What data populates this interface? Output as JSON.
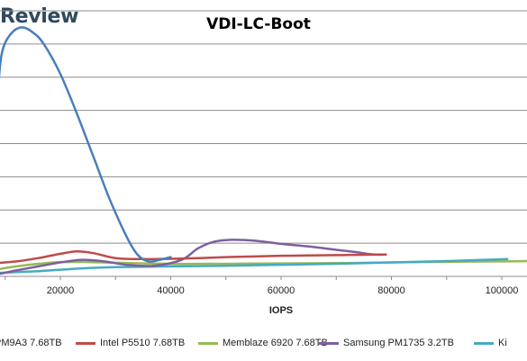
{
  "header": {
    "brand": "Review"
  },
  "colors": {
    "grid": "#8c8c8c",
    "axis": "#8c8c8c"
  },
  "chart_data": {
    "type": "line",
    "title": "VDI-LC-Boot",
    "xlabel": "IOPS",
    "ylabel": "",
    "xlim": [
      0,
      105000
    ],
    "ylim": [
      0,
      8
    ],
    "x_ticks": [
      "20000",
      "40000",
      "60000",
      "80000",
      "100000"
    ],
    "x_tick_values": [
      20000,
      40000,
      60000,
      80000,
      100000
    ],
    "grid": "horizontal",
    "legend": "bottom",
    "series": [
      {
        "name": "PM9A3 7.68TB",
        "color": "#4a7ebb",
        "points": [
          [
            7800,
            1.1
          ],
          [
            8100,
            2.0
          ],
          [
            8400,
            4.0
          ],
          [
            8800,
            5.8
          ],
          [
            9500,
            6.8
          ],
          [
            11000,
            7.3
          ],
          [
            13000,
            7.5
          ],
          [
            15000,
            7.35
          ],
          [
            17000,
            7.0
          ],
          [
            20000,
            6.1
          ],
          [
            23000,
            4.9
          ],
          [
            26000,
            3.6
          ],
          [
            29000,
            2.3
          ],
          [
            32000,
            1.2
          ],
          [
            34000,
            0.65
          ],
          [
            36000,
            0.45
          ],
          [
            38000,
            0.5
          ],
          [
            40000,
            0.58
          ]
        ]
      },
      {
        "name": "Intel P5510 7.68TB",
        "color": "#be4b48",
        "points": [
          [
            8000,
            0.4
          ],
          [
            12000,
            0.45
          ],
          [
            16000,
            0.55
          ],
          [
            20000,
            0.68
          ],
          [
            23000,
            0.75
          ],
          [
            26000,
            0.7
          ],
          [
            30000,
            0.55
          ],
          [
            35000,
            0.52
          ],
          [
            40000,
            0.53
          ],
          [
            45000,
            0.55
          ],
          [
            50000,
            0.58
          ],
          [
            55000,
            0.6
          ],
          [
            60000,
            0.62
          ],
          [
            65000,
            0.63
          ],
          [
            70000,
            0.64
          ],
          [
            75000,
            0.65
          ],
          [
            79000,
            0.66
          ]
        ]
      },
      {
        "name": "Memblaze 6920 7.68TB",
        "color": "#98b954",
        "points": [
          [
            8000,
            0.2
          ],
          [
            12000,
            0.3
          ],
          [
            16000,
            0.38
          ],
          [
            20000,
            0.43
          ],
          [
            25000,
            0.43
          ],
          [
            30000,
            0.41
          ],
          [
            40000,
            0.38
          ],
          [
            50000,
            0.38
          ],
          [
            60000,
            0.39
          ],
          [
            70000,
            0.4
          ],
          [
            80000,
            0.42
          ],
          [
            90000,
            0.44
          ],
          [
            100000,
            0.45
          ],
          [
            105000,
            0.46
          ]
        ]
      },
      {
        "name": "Samsung PM1735 3.2TB",
        "color": "#7d5fa0",
        "points": [
          [
            8000,
            0.05
          ],
          [
            12000,
            0.18
          ],
          [
            16000,
            0.3
          ],
          [
            20000,
            0.42
          ],
          [
            24000,
            0.5
          ],
          [
            28000,
            0.45
          ],
          [
            32000,
            0.35
          ],
          [
            37000,
            0.32
          ],
          [
            42000,
            0.5
          ],
          [
            45000,
            0.85
          ],
          [
            48000,
            1.05
          ],
          [
            51000,
            1.1
          ],
          [
            55000,
            1.08
          ],
          [
            60000,
            0.98
          ],
          [
            65000,
            0.9
          ],
          [
            70000,
            0.8
          ],
          [
            74000,
            0.72
          ],
          [
            76000,
            0.67
          ],
          [
            78000,
            0.65
          ]
        ]
      },
      {
        "name": "Ki",
        "color": "#46aac4",
        "points": [
          [
            8000,
            0.1
          ],
          [
            15000,
            0.15
          ],
          [
            20000,
            0.2
          ],
          [
            25000,
            0.25
          ],
          [
            30000,
            0.28
          ],
          [
            40000,
            0.3
          ],
          [
            50000,
            0.32
          ],
          [
            60000,
            0.35
          ],
          [
            70000,
            0.38
          ],
          [
            80000,
            0.42
          ],
          [
            90000,
            0.46
          ],
          [
            97000,
            0.5
          ],
          [
            101000,
            0.52
          ]
        ]
      }
    ]
  }
}
